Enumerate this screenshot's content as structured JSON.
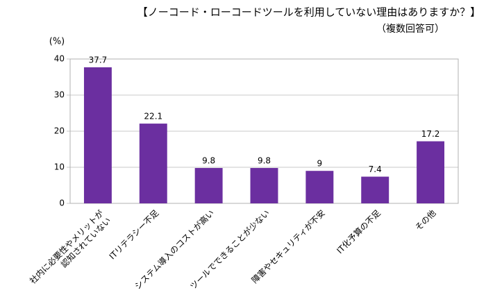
{
  "chart_data": {
    "type": "bar",
    "title": "【ノーコード・ローコードツールを利用していない理由はありますか？】",
    "subtitle": "（複数回答可）",
    "y_label": "(%)",
    "categories": [
      "社内に必要性やメリットが\n認知されていない",
      "ITリテラシー不足",
      "システム導入のコストが高い",
      "ツールでできることが少ない",
      "障害やセキュリティが不安",
      "IT化予算の不足",
      "その他"
    ],
    "values": [
      37.7,
      22.1,
      9.8,
      9.8,
      9,
      7.4,
      17.2
    ],
    "color": "#6b2fa0",
    "ylim": [
      0,
      40
    ],
    "yticks": [
      0,
      10,
      20,
      30,
      40
    ],
    "grid": true
  }
}
